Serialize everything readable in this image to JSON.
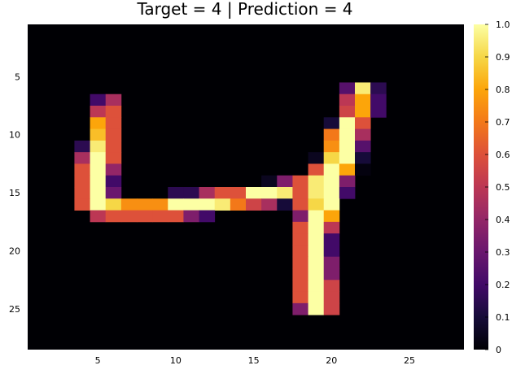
{
  "chart_data": {
    "type": "heatmap",
    "title": "Target = 4 | Prediction = 4",
    "xlabel": "",
    "ylabel": "",
    "colormap": "inferno",
    "clim": [
      0,
      1
    ],
    "grid": false,
    "legend": "colorbar-right",
    "x_range": [
      0.5,
      28.5
    ],
    "y_range": [
      0.5,
      28.5
    ],
    "y_axis_direction": "top-to-bottom",
    "x_ticks": [
      5,
      10,
      15,
      20,
      25
    ],
    "y_ticks": [
      5,
      10,
      15,
      20,
      25
    ],
    "colorbar_ticks": [
      0,
      0.1,
      0.2,
      0.3,
      0.4,
      0.5,
      0.6,
      0.7,
      0.8,
      0.9,
      1.0
    ],
    "colorbar_tick_labels": [
      "0",
      "0.1",
      "0.2",
      "0.3",
      "0.4",
      "0.5",
      "0.6",
      "0.7",
      "0.8",
      "0.9",
      "1.0"
    ],
    "rows": 28,
    "cols": 28,
    "nonzero_cells": [
      [
        6,
        21,
        0.25
      ],
      [
        6,
        22,
        0.95
      ],
      [
        6,
        23,
        0.15
      ],
      [
        7,
        5,
        0.2
      ],
      [
        7,
        6,
        0.45
      ],
      [
        7,
        21,
        0.5
      ],
      [
        7,
        22,
        0.8
      ],
      [
        7,
        23,
        0.2
      ],
      [
        8,
        5,
        0.5
      ],
      [
        8,
        6,
        0.6
      ],
      [
        8,
        21,
        0.55
      ],
      [
        8,
        22,
        0.8
      ],
      [
        8,
        23,
        0.2
      ],
      [
        9,
        5,
        0.8
      ],
      [
        9,
        6,
        0.6
      ],
      [
        9,
        20,
        0.1
      ],
      [
        9,
        21,
        1.0
      ],
      [
        9,
        22,
        0.6
      ],
      [
        10,
        5,
        0.85
      ],
      [
        10,
        6,
        0.6
      ],
      [
        10,
        20,
        0.7
      ],
      [
        10,
        21,
        1.0
      ],
      [
        10,
        22,
        0.45
      ],
      [
        11,
        4,
        0.15
      ],
      [
        11,
        5,
        0.95
      ],
      [
        11,
        6,
        0.6
      ],
      [
        11,
        20,
        0.75
      ],
      [
        11,
        21,
        1.0
      ],
      [
        11,
        22,
        0.25
      ],
      [
        12,
        4,
        0.45
      ],
      [
        12,
        5,
        1.0
      ],
      [
        12,
        6,
        0.6
      ],
      [
        12,
        19,
        0.05
      ],
      [
        12,
        20,
        0.9
      ],
      [
        12,
        21,
        1.0
      ],
      [
        12,
        22,
        0.1
      ],
      [
        13,
        4,
        0.6
      ],
      [
        13,
        5,
        1.0
      ],
      [
        13,
        6,
        0.4
      ],
      [
        13,
        19,
        0.6
      ],
      [
        13,
        20,
        1.0
      ],
      [
        13,
        21,
        0.8
      ],
      [
        13,
        22,
        0.02
      ],
      [
        14,
        4,
        0.6
      ],
      [
        14,
        5,
        1.0
      ],
      [
        14,
        6,
        0.2
      ],
      [
        14,
        16,
        0.05
      ],
      [
        14,
        17,
        0.35
      ],
      [
        14,
        18,
        0.6
      ],
      [
        14,
        19,
        0.95
      ],
      [
        14,
        20,
        1.0
      ],
      [
        14,
        21,
        0.35
      ],
      [
        15,
        4,
        0.6
      ],
      [
        15,
        5,
        1.0
      ],
      [
        15,
        6,
        0.3
      ],
      [
        15,
        10,
        0.15
      ],
      [
        15,
        11,
        0.15
      ],
      [
        15,
        12,
        0.45
      ],
      [
        15,
        13,
        0.6
      ],
      [
        15,
        14,
        0.6
      ],
      [
        15,
        15,
        1.0
      ],
      [
        15,
        16,
        1.0
      ],
      [
        15,
        17,
        0.95
      ],
      [
        15,
        18,
        0.6
      ],
      [
        15,
        19,
        0.95
      ],
      [
        15,
        20,
        1.0
      ],
      [
        15,
        21,
        0.2
      ],
      [
        16,
        4,
        0.6
      ],
      [
        16,
        5,
        1.0
      ],
      [
        16,
        6,
        0.9
      ],
      [
        16,
        7,
        0.75
      ],
      [
        16,
        8,
        0.75
      ],
      [
        16,
        9,
        0.75
      ],
      [
        16,
        10,
        1.0
      ],
      [
        16,
        11,
        1.0
      ],
      [
        16,
        12,
        1.0
      ],
      [
        16,
        13,
        0.95
      ],
      [
        16,
        14,
        0.7
      ],
      [
        16,
        15,
        0.55
      ],
      [
        16,
        16,
        0.45
      ],
      [
        16,
        17,
        0.1
      ],
      [
        16,
        18,
        0.6
      ],
      [
        16,
        19,
        0.9
      ],
      [
        16,
        20,
        1.0
      ],
      [
        17,
        5,
        0.5
      ],
      [
        17,
        6,
        0.6
      ],
      [
        17,
        7,
        0.6
      ],
      [
        17,
        8,
        0.6
      ],
      [
        17,
        9,
        0.6
      ],
      [
        17,
        10,
        0.6
      ],
      [
        17,
        11,
        0.35
      ],
      [
        17,
        12,
        0.2
      ],
      [
        17,
        18,
        0.35
      ],
      [
        17,
        19,
        1.0
      ],
      [
        17,
        20,
        0.8
      ],
      [
        18,
        18,
        0.6
      ],
      [
        18,
        19,
        1.0
      ],
      [
        18,
        20,
        0.5
      ],
      [
        19,
        18,
        0.6
      ],
      [
        19,
        19,
        1.0
      ],
      [
        19,
        20,
        0.2
      ],
      [
        20,
        18,
        0.6
      ],
      [
        20,
        19,
        1.0
      ],
      [
        20,
        20,
        0.2
      ],
      [
        21,
        18,
        0.6
      ],
      [
        21,
        19,
        1.0
      ],
      [
        21,
        20,
        0.35
      ],
      [
        22,
        18,
        0.6
      ],
      [
        22,
        19,
        1.0
      ],
      [
        22,
        20,
        0.35
      ],
      [
        23,
        18,
        0.6
      ],
      [
        23,
        19,
        1.0
      ],
      [
        23,
        20,
        0.55
      ],
      [
        24,
        18,
        0.6
      ],
      [
        24,
        19,
        1.0
      ],
      [
        24,
        20,
        0.55
      ],
      [
        25,
        18,
        0.35
      ],
      [
        25,
        19,
        1.0
      ],
      [
        25,
        20,
        0.55
      ]
    ]
  }
}
